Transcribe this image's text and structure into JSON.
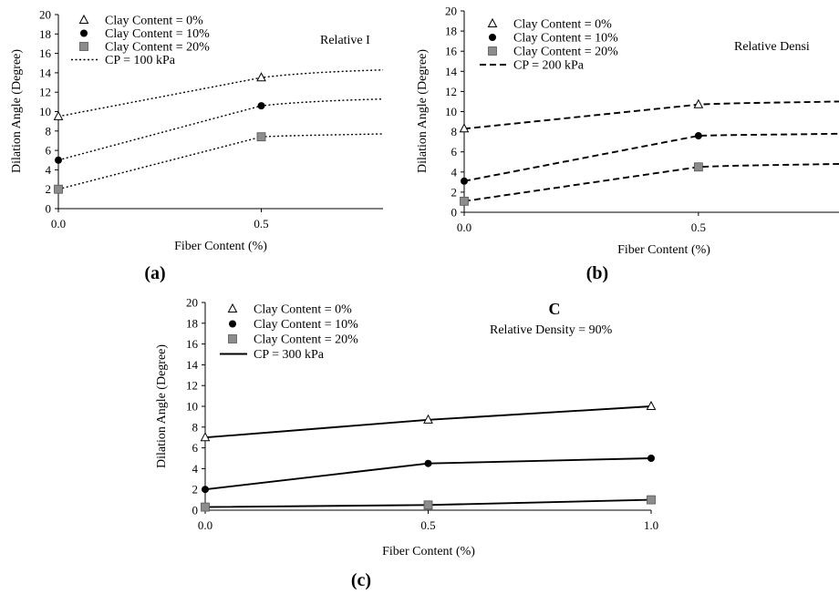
{
  "chart_data": [
    {
      "type": "line",
      "panel_label": "(a)",
      "xlabel": "Fiber Content (%)",
      "ylabel": "Dilation Angle (Degree)",
      "xlim": [
        0,
        0.8
      ],
      "ylim": [
        0,
        20
      ],
      "x_ticks": [
        "0.0",
        "0.5"
      ],
      "y_ticks": [
        "0",
        "2",
        "4",
        "6",
        "8",
        "10",
        "12",
        "14",
        "16",
        "18",
        "20"
      ],
      "line_style": "dotted",
      "line_legend": "CP = 100 kPa",
      "annotation": "Relative I",
      "series": [
        {
          "name": "Clay Content = 0%",
          "marker": "triangle",
          "x": [
            0,
            0.5
          ],
          "values": [
            9.5,
            13.5
          ]
        },
        {
          "name": "Clay Content = 10%",
          "marker": "circle",
          "x": [
            0,
            0.5
          ],
          "values": [
            5.0,
            10.6
          ]
        },
        {
          "name": "Clay Content = 20%",
          "marker": "square",
          "x": [
            0,
            0.5
          ],
          "values": [
            2.0,
            7.4
          ]
        }
      ],
      "curve_end_values": [
        14.3,
        11.3,
        7.7
      ]
    },
    {
      "type": "line",
      "panel_label": "(b)",
      "xlabel": "Fiber Content (%)",
      "ylabel": "Dilation Angle (Degree)",
      "xlim": [
        0,
        0.8
      ],
      "ylim": [
        0,
        20
      ],
      "x_ticks": [
        "0.0",
        "0.5"
      ],
      "y_ticks": [
        "0",
        "2",
        "4",
        "6",
        "8",
        "10",
        "12",
        "14",
        "16",
        "18",
        "20"
      ],
      "line_style": "dashed",
      "line_legend": "CP = 200 kPa",
      "annotation": "Relative Densi",
      "series": [
        {
          "name": "Clay Content = 0%",
          "marker": "triangle",
          "x": [
            0,
            0.5
          ],
          "values": [
            8.3,
            10.7
          ]
        },
        {
          "name": "Clay Content = 10%",
          "marker": "circle",
          "x": [
            0,
            0.5
          ],
          "values": [
            3.1,
            7.6
          ]
        },
        {
          "name": "Clay Content = 20%",
          "marker": "square",
          "x": [
            0,
            0.5
          ],
          "values": [
            1.1,
            4.5
          ]
        }
      ],
      "curve_end_values": [
        11.0,
        7.8,
        4.8
      ]
    },
    {
      "type": "line",
      "panel_label": "(c)",
      "corner_letter": "C",
      "xlabel": "Fiber Content (%)",
      "ylabel": "Dilation Angle (Degree)",
      "xlim": [
        0,
        1.0
      ],
      "ylim": [
        0,
        20
      ],
      "x_ticks": [
        "0.0",
        "0.5",
        "1.0"
      ],
      "y_ticks": [
        "0",
        "2",
        "4",
        "6",
        "8",
        "10",
        "12",
        "14",
        "16",
        "18",
        "20"
      ],
      "line_style": "solid",
      "line_legend": "CP = 300 kPa",
      "annotation": "Relative Density = 90%",
      "series": [
        {
          "name": "Clay Content = 0%",
          "marker": "triangle",
          "x": [
            0,
            0.5,
            1.0
          ],
          "values": [
            7.0,
            8.7,
            10.0
          ]
        },
        {
          "name": "Clay Content = 10%",
          "marker": "circle",
          "x": [
            0,
            0.5,
            1.0
          ],
          "values": [
            2.0,
            4.5,
            5.0
          ]
        },
        {
          "name": "Clay Content = 20%",
          "marker": "square",
          "x": [
            0,
            0.5,
            1.0
          ],
          "values": [
            0.3,
            0.5,
            1.0
          ]
        }
      ]
    }
  ]
}
